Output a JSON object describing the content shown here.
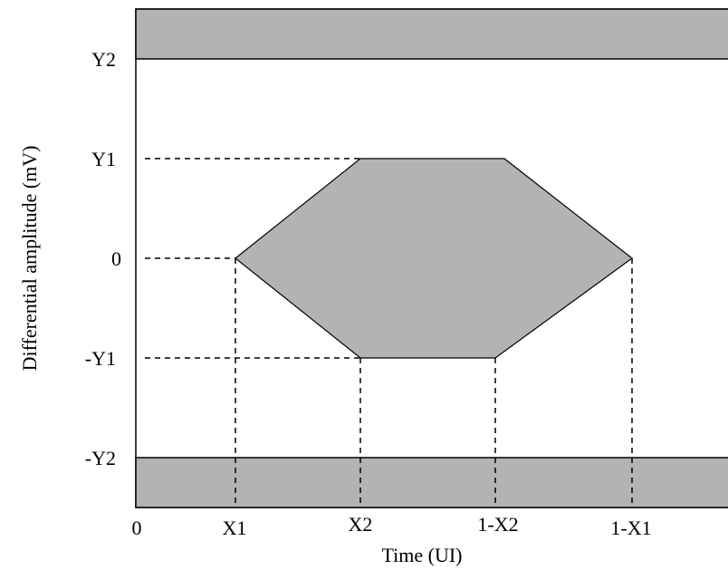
{
  "diagram": {
    "y_axis_title": "Differential amplitude (mV)",
    "x_axis_title": "Time (UI)",
    "y_labels": {
      "y2": "Y2",
      "y1": "Y1",
      "zero": "0",
      "neg_y1": "-Y1",
      "neg_y2": "-Y2"
    },
    "x_labels": {
      "origin": "0",
      "x1": "X1",
      "x2": "X2",
      "one_minus_x2": "1-X2",
      "one_minus_x1": "1-X1"
    },
    "colors": {
      "mask_fill": "#b3b3b3",
      "line": "#000000",
      "background": "#ffffff"
    }
  }
}
